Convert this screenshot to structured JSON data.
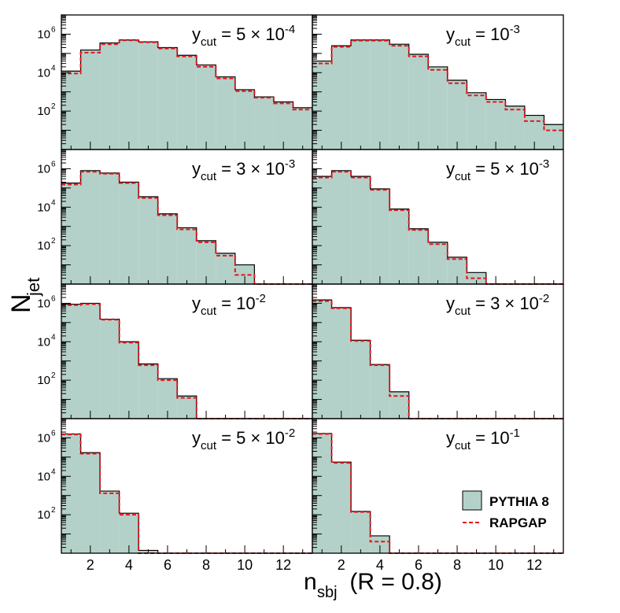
{
  "chart_data": {
    "type": "histogram-grid",
    "ylabel": "N_jet",
    "ylabel_main": "N",
    "ylabel_sub": "jet",
    "xlabel": "n_sbj (R = 0.8)",
    "xlabel_main": "n",
    "xlabel_sub": "sbj",
    "xlabel_suffix": " (R = 0.8)",
    "x_bin_edges": [
      0.5,
      1.5,
      2.5,
      3.5,
      4.5,
      5.5,
      6.5,
      7.5,
      8.5,
      9.5,
      10.5,
      11.5,
      12.5,
      13.5
    ],
    "xlim": [
      0.5,
      13.5
    ],
    "x_tick_labels": [
      "2",
      "4",
      "6",
      "8",
      "10",
      "12"
    ],
    "x_tick_values": [
      2,
      4,
      6,
      8,
      10,
      12
    ],
    "y_scale": "log",
    "ylim": [
      1,
      10000000
    ],
    "y_tick_labels": [
      {
        "base": "10",
        "exp": "2",
        "value": 100
      },
      {
        "base": "10",
        "exp": "4",
        "value": 10000
      },
      {
        "base": "10",
        "exp": "6",
        "value": 1000000
      }
    ],
    "legend": {
      "position": "bottom-right of last panel",
      "entries": [
        {
          "label": "PYTHIA 8",
          "style": "filled",
          "fill": "#b3d1c8",
          "stroke": "#000000"
        },
        {
          "label": "RAPGAP",
          "style": "dashed",
          "stroke": "#e8141c"
        }
      ]
    },
    "colors": {
      "pythia_fill": "#b3d1c8",
      "pythia_edge": "#000000",
      "rapgap_line": "#e8141c"
    },
    "panels": [
      {
        "label_main": "y",
        "label_sub": "cut",
        "label_value": " = 5 × 10",
        "label_exp": "-4",
        "pythia": [
          12000,
          150000,
          350000,
          500000,
          400000,
          200000,
          80000,
          25000,
          6000,
          1300,
          550,
          300,
          150
        ],
        "rapgap": [
          9000,
          110000,
          300000,
          480000,
          380000,
          180000,
          70000,
          20000,
          5000,
          1100,
          500,
          250,
          120
        ]
      },
      {
        "label_main": "y",
        "label_sub": "cut",
        "label_value": " = 10",
        "label_exp": "-3",
        "pythia": [
          40000,
          250000,
          500000,
          500000,
          300000,
          90000,
          20000,
          4000,
          900,
          400,
          180,
          60,
          20
        ],
        "rapgap": [
          30000,
          220000,
          460000,
          460000,
          250000,
          70000,
          14000,
          2800,
          650,
          300,
          120,
          30,
          10
        ]
      },
      {
        "label_main": "y",
        "label_sub": "cut",
        "label_value": " = 3 × 10",
        "label_exp": "-3",
        "pythia": [
          180000,
          800000,
          600000,
          200000,
          35000,
          4500,
          850,
          180,
          40,
          10,
          0,
          0,
          0
        ],
        "rapgap": [
          150000,
          700000,
          550000,
          180000,
          30000,
          3800,
          700,
          150,
          30,
          3,
          0,
          0,
          0
        ]
      },
      {
        "label_main": "y",
        "label_sub": "cut",
        "label_value": " = 5 × 10",
        "label_exp": "-3",
        "pythia": [
          400000,
          800000,
          400000,
          90000,
          8000,
          750,
          150,
          25,
          4,
          0,
          0,
          0,
          0
        ],
        "rapgap": [
          350000,
          700000,
          350000,
          80000,
          7000,
          650,
          120,
          20,
          2,
          0,
          0,
          0,
          0
        ]
      },
      {
        "label_main": "y",
        "label_sub": "cut",
        "label_value": " = 10",
        "label_exp": "-2",
        "pythia": [
          900000,
          1000000,
          150000,
          10000,
          700,
          120,
          15,
          0,
          0,
          0,
          0,
          0,
          0
        ],
        "rapgap": [
          800000,
          900000,
          140000,
          9000,
          600,
          100,
          12,
          0,
          0,
          0,
          0,
          0,
          0
        ]
      },
      {
        "label_main": "y",
        "label_sub": "cut",
        "label_value": " = 3 × 10",
        "label_exp": "-2",
        "pythia": [
          1500000,
          600000,
          12000,
          650,
          25,
          0,
          0,
          0,
          0,
          0,
          0,
          0,
          0
        ],
        "rapgap": [
          1300000,
          550000,
          11000,
          600,
          15,
          0,
          0,
          0,
          0,
          0,
          0,
          0,
          0
        ]
      },
      {
        "label_main": "y",
        "label_sub": "cut",
        "label_value": " = 5 × 10",
        "label_exp": "-2",
        "pythia": [
          1600000,
          170000,
          1700,
          120,
          1.4,
          0,
          0,
          0,
          0,
          0,
          0,
          0,
          0
        ],
        "rapgap": [
          1500000,
          150000,
          1300,
          100,
          0,
          0,
          0,
          0,
          0,
          0,
          0,
          0,
          0
        ]
      },
      {
        "label_main": "y",
        "label_sub": "cut",
        "label_value": " = 10",
        "label_exp": "-1",
        "pythia": [
          1700000,
          55000,
          150,
          8,
          0,
          0,
          0,
          0,
          0,
          0,
          0,
          0,
          0
        ],
        "rapgap": [
          1600000,
          50000,
          140,
          4,
          0,
          0,
          0,
          0,
          0,
          0,
          0,
          0,
          0
        ]
      }
    ]
  }
}
